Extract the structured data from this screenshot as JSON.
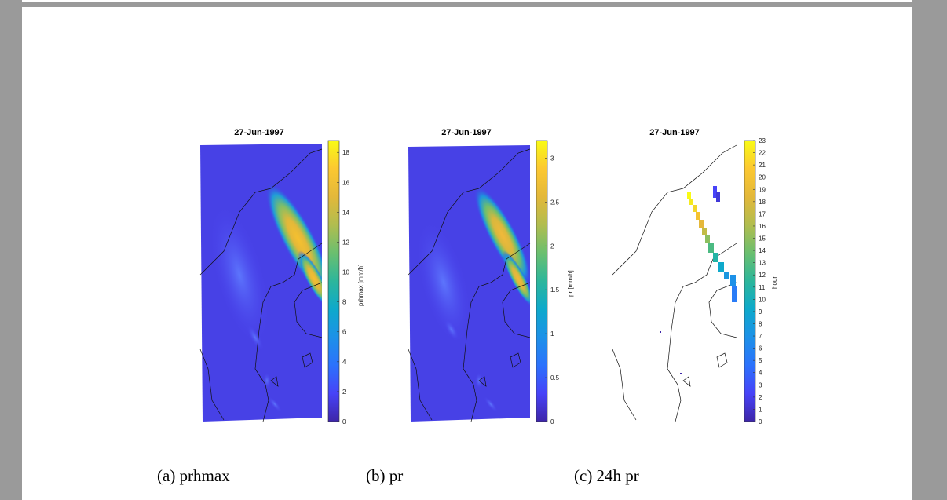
{
  "figure": {
    "panels": [
      {
        "id": "a",
        "title": "27-Jun-1997",
        "colorbar_label": "prhmax [mm/h]",
        "colorbar_range": [
          0,
          18.8
        ],
        "colorbar_ticks": [
          "0",
          "2",
          "4",
          "6",
          "8",
          "10",
          "12",
          "14",
          "16",
          "18"
        ],
        "caption": "(a) prhmax"
      },
      {
        "id": "b",
        "title": "27-Jun-1997",
        "colorbar_label": "pr [mm/h]",
        "colorbar_range": [
          0,
          3.2
        ],
        "colorbar_ticks": [
          "0",
          "0.5",
          "1",
          "1.5",
          "2",
          "2.5",
          "3"
        ],
        "caption": "(b) pr"
      },
      {
        "id": "c",
        "title": "27-Jun-1997",
        "colorbar_label": "hour",
        "colorbar_range": [
          0,
          23
        ],
        "colorbar_ticks": [
          "0",
          "1",
          "2",
          "3",
          "4",
          "5",
          "6",
          "7",
          "8",
          "9",
          "10",
          "11",
          "12",
          "13",
          "14",
          "15",
          "16",
          "17",
          "18",
          "19",
          "20",
          "21",
          "22",
          "23"
        ],
        "caption": "(c) 24h pr"
      }
    ],
    "colormap": [
      "#3e26a8",
      "#4743f8",
      "#2c72fc",
      "#1d91e8",
      "#0ea9cb",
      "#2db69b",
      "#6bbf6f",
      "#b1bd4f",
      "#e3b83a",
      "#fcc831",
      "#f9fb15"
    ]
  }
}
